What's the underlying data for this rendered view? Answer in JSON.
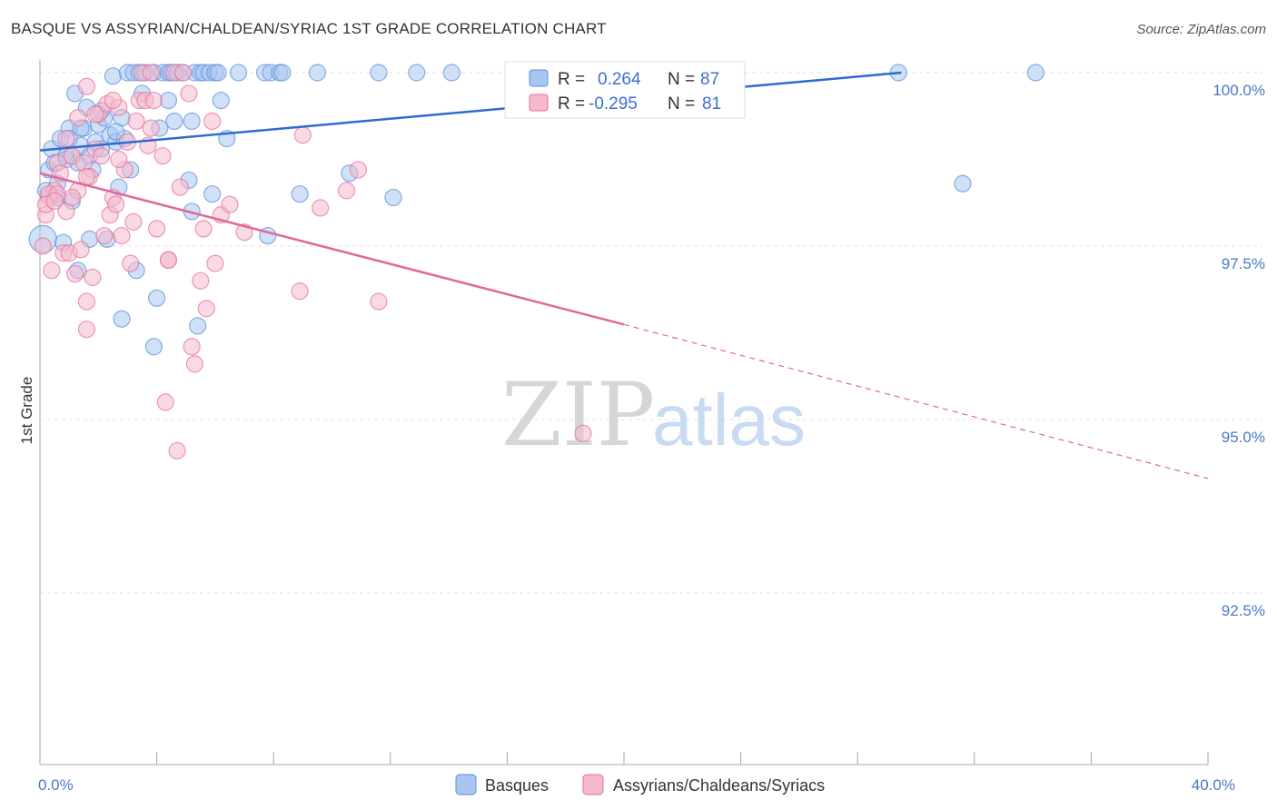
{
  "title": "BASQUE VS ASSYRIAN/CHALDEAN/SYRIAC 1ST GRADE CORRELATION CHART",
  "source": "Source: ZipAtlas.com",
  "watermark": {
    "zip": "ZIP",
    "atlas": "atlas"
  },
  "colors": {
    "blue": "#5b8fdc",
    "blue_fill": "#a9c6f0",
    "pink": "#e5709a",
    "pink_fill": "#f4b9cc",
    "axis_label": "#4a78c8",
    "grid": "#e2e2e2"
  },
  "legend_stats": {
    "r_label": "R =",
    "n_label": "N =",
    "rows": [
      {
        "series": "Basques",
        "r": "0.264",
        "n": "87",
        "color": "#5b8fdc"
      },
      {
        "series": "Assyrians/Chaldeans/Syriacs",
        "r": "-0.295",
        "n": "81",
        "color": "#e5709a"
      }
    ]
  },
  "chart_data": {
    "type": "scatter",
    "title": "BASQUE VS ASSYRIAN/CHALDEAN/SYRIAC 1ST GRADE CORRELATION CHART",
    "xlabel": "",
    "ylabel": "1st Grade",
    "xlim": [
      0,
      40
    ],
    "ylim": [
      90.8,
      100.3
    ],
    "x_tick_labels": [
      {
        "value": 0,
        "label": "0.0%"
      },
      {
        "value": 40,
        "label": "40.0%"
      }
    ],
    "y_tick_labels": [
      {
        "value": 100,
        "label": "100.0%"
      },
      {
        "value": 97.5,
        "label": "97.5%"
      },
      {
        "value": 95,
        "label": "95.0%"
      },
      {
        "value": 92.5,
        "label": "92.5%"
      }
    ],
    "grid": true,
    "legend": [
      "Basques",
      "Assyrians/Chaldeans/Syriacs"
    ],
    "series": [
      {
        "name": "Basques",
        "r": 0.264,
        "n": 87,
        "trend": {
          "x0": 0,
          "y0": 98.88,
          "x1": 29.5,
          "y1": 100.0
        },
        "points": [
          [
            0.1,
            97.6
          ],
          [
            0.2,
            98.3
          ],
          [
            0.3,
            98.6
          ],
          [
            0.4,
            98.9
          ],
          [
            0.5,
            98.7
          ],
          [
            0.6,
            98.4
          ],
          [
            0.7,
            99.05
          ],
          [
            0.8,
            97.55
          ],
          [
            0.9,
            98.8
          ],
          [
            1.0,
            99.2
          ],
          [
            1.1,
            98.15
          ],
          [
            1.2,
            99.7
          ],
          [
            1.3,
            98.7
          ],
          [
            1.4,
            98.95
          ],
          [
            1.5,
            99.2
          ],
          [
            1.6,
            99.5
          ],
          [
            1.7,
            98.8
          ],
          [
            1.8,
            98.6
          ],
          [
            1.9,
            99.0
          ],
          [
            2.0,
            99.25
          ],
          [
            2.1,
            98.9
          ],
          [
            2.2,
            99.35
          ],
          [
            2.4,
            99.1
          ],
          [
            2.5,
            99.95
          ],
          [
            2.6,
            99.0
          ],
          [
            2.7,
            98.35
          ],
          [
            2.8,
            99.35
          ],
          [
            2.9,
            99.05
          ],
          [
            3.0,
            100.0
          ],
          [
            3.1,
            98.6
          ],
          [
            3.2,
            100.0
          ],
          [
            3.4,
            100.0
          ],
          [
            3.6,
            100.0
          ],
          [
            3.9,
            100.0
          ],
          [
            4.1,
            99.2
          ],
          [
            4.2,
            100.0
          ],
          [
            4.4,
            100.0
          ],
          [
            4.5,
            100.0
          ],
          [
            4.6,
            99.3
          ],
          [
            4.7,
            100.0
          ],
          [
            4.9,
            100.0
          ],
          [
            5.1,
            98.45
          ],
          [
            5.2,
            99.3
          ],
          [
            5.3,
            100.0
          ],
          [
            5.5,
            100.0
          ],
          [
            5.6,
            100.0
          ],
          [
            5.8,
            100.0
          ],
          [
            5.9,
            98.25
          ],
          [
            6.0,
            100.0
          ],
          [
            6.1,
            100.0
          ],
          [
            6.2,
            99.6
          ],
          [
            6.4,
            99.05
          ],
          [
            6.8,
            100.0
          ],
          [
            7.7,
            100.0
          ],
          [
            7.8,
            97.65
          ],
          [
            7.9,
            100.0
          ],
          [
            8.2,
            100.0
          ],
          [
            8.3,
            100.0
          ],
          [
            8.9,
            98.25
          ],
          [
            9.5,
            100.0
          ],
          [
            10.6,
            98.55
          ],
          [
            11.6,
            100.0
          ],
          [
            12.1,
            98.2
          ],
          [
            12.9,
            100.0
          ],
          [
            14.1,
            100.0
          ],
          [
            17.0,
            100.0
          ],
          [
            20.7,
            100.0
          ],
          [
            29.4,
            100.0
          ],
          [
            34.1,
            100.0
          ],
          [
            31.6,
            98.4
          ],
          [
            1.7,
            97.6
          ],
          [
            2.3,
            97.6
          ],
          [
            1.3,
            97.15
          ],
          [
            3.3,
            97.15
          ],
          [
            2.8,
            96.45
          ],
          [
            4.0,
            96.75
          ],
          [
            3.9,
            96.05
          ],
          [
            5.4,
            96.35
          ],
          [
            5.2,
            98.0
          ],
          [
            4.4,
            99.6
          ],
          [
            3.5,
            99.7
          ],
          [
            2.1,
            99.45
          ],
          [
            1.0,
            99.05
          ],
          [
            1.4,
            99.2
          ],
          [
            0.6,
            98.2
          ],
          [
            0.9,
            98.75
          ],
          [
            2.6,
            99.15
          ]
        ]
      },
      {
        "name": "Assyrians/Chaldeans/Syriacs",
        "r": -0.295,
        "n": 81,
        "trend_solid": {
          "x0": 0,
          "y0": 98.55,
          "x1": 20.0,
          "y1": 96.37
        },
        "trend_dashed": {
          "x0": 20.0,
          "y0": 96.37,
          "x1": 40.0,
          "y1": 94.15
        },
        "points": [
          [
            0.1,
            97.5
          ],
          [
            0.2,
            97.95
          ],
          [
            0.3,
            98.2
          ],
          [
            0.4,
            97.15
          ],
          [
            0.5,
            98.3
          ],
          [
            0.6,
            98.7
          ],
          [
            0.7,
            98.55
          ],
          [
            0.8,
            97.4
          ],
          [
            0.9,
            99.05
          ],
          [
            1.0,
            97.4
          ],
          [
            1.1,
            98.8
          ],
          [
            1.2,
            97.1
          ],
          [
            1.3,
            98.3
          ],
          [
            1.4,
            97.45
          ],
          [
            1.5,
            98.7
          ],
          [
            1.6,
            96.3
          ],
          [
            1.7,
            98.5
          ],
          [
            1.8,
            97.05
          ],
          [
            1.9,
            98.9
          ],
          [
            2.0,
            99.4
          ],
          [
            2.1,
            98.8
          ],
          [
            2.2,
            97.65
          ],
          [
            2.3,
            99.55
          ],
          [
            2.4,
            97.95
          ],
          [
            2.5,
            98.2
          ],
          [
            2.6,
            98.1
          ],
          [
            2.7,
            99.5
          ],
          [
            2.8,
            97.65
          ],
          [
            2.9,
            98.6
          ],
          [
            3.0,
            99.0
          ],
          [
            3.1,
            97.25
          ],
          [
            3.2,
            97.85
          ],
          [
            3.3,
            99.3
          ],
          [
            3.4,
            99.6
          ],
          [
            3.5,
            100.0
          ],
          [
            3.6,
            99.6
          ],
          [
            3.7,
            98.95
          ],
          [
            3.8,
            100.0
          ],
          [
            3.9,
            99.6
          ],
          [
            4.0,
            97.75
          ],
          [
            4.2,
            98.8
          ],
          [
            4.4,
            97.3
          ],
          [
            4.6,
            100.0
          ],
          [
            4.8,
            98.35
          ],
          [
            4.9,
            100.0
          ],
          [
            5.1,
            99.7
          ],
          [
            5.2,
            96.05
          ],
          [
            5.3,
            95.8
          ],
          [
            5.5,
            97.0
          ],
          [
            5.6,
            97.75
          ],
          [
            5.7,
            96.6
          ],
          [
            5.9,
            99.3
          ],
          [
            6.0,
            97.25
          ],
          [
            6.2,
            97.95
          ],
          [
            6.5,
            98.1
          ],
          [
            7.0,
            97.7
          ],
          [
            4.3,
            95.25
          ],
          [
            4.7,
            94.55
          ],
          [
            8.9,
            96.85
          ],
          [
            9.6,
            98.05
          ],
          [
            9.0,
            99.1
          ],
          [
            10.5,
            98.3
          ],
          [
            10.9,
            98.6
          ],
          [
            11.6,
            96.7
          ],
          [
            18.6,
            94.8
          ],
          [
            20.6,
            100.0
          ],
          [
            1.6,
            99.8
          ],
          [
            2.5,
            99.6
          ],
          [
            0.3,
            98.25
          ],
          [
            0.2,
            98.1
          ],
          [
            0.6,
            98.25
          ],
          [
            0.9,
            98.0
          ],
          [
            1.1,
            98.2
          ],
          [
            1.6,
            98.5
          ],
          [
            0.5,
            98.15
          ],
          [
            1.9,
            99.4
          ],
          [
            2.7,
            98.75
          ],
          [
            3.8,
            99.2
          ],
          [
            1.3,
            99.35
          ],
          [
            4.4,
            97.3
          ],
          [
            1.6,
            96.7
          ]
        ]
      }
    ]
  }
}
